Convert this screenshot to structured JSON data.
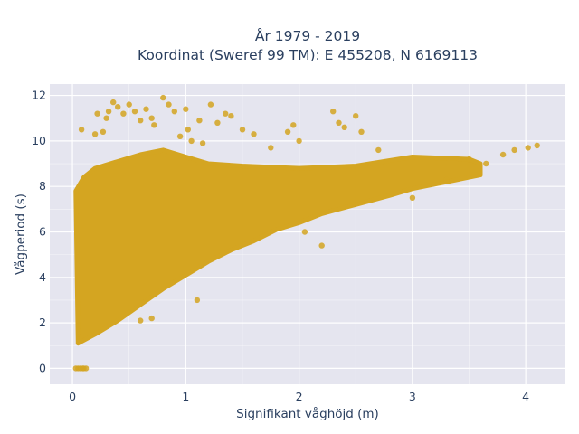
{
  "chart_data": {
    "type": "scatter",
    "title_line1": "År 1979 - 2019",
    "title_line2": "Koordinat (Sweref 99 TM): E 455208, N 6169113",
    "xlabel": "Signifikant våghöjd (m)",
    "ylabel": "Vågperiod (s)",
    "xlim": [
      -0.2,
      4.35
    ],
    "ylim": [
      -0.7,
      12.5
    ],
    "xticks": [
      0,
      1,
      2,
      3,
      4
    ],
    "yticks": [
      0,
      2,
      4,
      6,
      8,
      10,
      12
    ],
    "grid": true,
    "marker_color": "#d4a521",
    "plot_background": "#e5e5ef",
    "grid_color": "#ffffff",
    "point_cloud": {
      "description_free": true,
      "lower_envelope": [
        [
          0.05,
          1.1
        ],
        [
          0.2,
          1.5
        ],
        [
          0.4,
          2.1
        ],
        [
          0.6,
          2.8
        ],
        [
          0.8,
          3.5
        ],
        [
          1.0,
          4.1
        ],
        [
          1.2,
          4.7
        ],
        [
          1.4,
          5.2
        ],
        [
          1.6,
          5.6
        ],
        [
          1.8,
          6.1
        ],
        [
          2.0,
          6.4
        ],
        [
          2.2,
          6.8
        ],
        [
          2.5,
          7.2
        ],
        [
          2.8,
          7.6
        ],
        [
          3.0,
          7.9
        ],
        [
          3.3,
          8.2
        ],
        [
          3.6,
          8.5
        ]
      ],
      "upper_envelope": [
        [
          0.03,
          7.8
        ],
        [
          0.1,
          8.4
        ],
        [
          0.2,
          8.8
        ],
        [
          0.4,
          9.1
        ],
        [
          0.6,
          9.4
        ],
        [
          0.8,
          9.6
        ],
        [
          1.0,
          9.3
        ],
        [
          1.2,
          9.0
        ],
        [
          1.5,
          8.9
        ],
        [
          2.0,
          8.8
        ],
        [
          2.5,
          8.9
        ],
        [
          3.0,
          9.3
        ],
        [
          3.5,
          9.2
        ],
        [
          3.6,
          9.0
        ]
      ]
    },
    "points": [
      [
        0.03,
        0.0
      ],
      [
        0.05,
        0.0
      ],
      [
        0.07,
        0.0
      ],
      [
        0.09,
        0.0
      ],
      [
        0.1,
        0.0
      ],
      [
        0.12,
        0.0
      ],
      [
        0.08,
        10.5
      ],
      [
        0.2,
        10.3
      ],
      [
        0.22,
        11.2
      ],
      [
        0.27,
        10.4
      ],
      [
        0.3,
        11.0
      ],
      [
        0.32,
        11.3
      ],
      [
        0.36,
        11.7
      ],
      [
        0.4,
        11.5
      ],
      [
        0.45,
        11.2
      ],
      [
        0.5,
        11.6
      ],
      [
        0.55,
        11.3
      ],
      [
        0.6,
        10.9
      ],
      [
        0.65,
        11.4
      ],
      [
        0.7,
        11.0
      ],
      [
        0.72,
        10.7
      ],
      [
        0.8,
        11.9
      ],
      [
        0.85,
        11.6
      ],
      [
        0.9,
        11.3
      ],
      [
        0.95,
        10.2
      ],
      [
        1.0,
        11.4
      ],
      [
        1.02,
        10.5
      ],
      [
        1.05,
        10.0
      ],
      [
        1.12,
        10.9
      ],
      [
        1.15,
        9.9
      ],
      [
        1.22,
        11.6
      ],
      [
        1.28,
        10.8
      ],
      [
        1.35,
        11.2
      ],
      [
        1.4,
        11.1
      ],
      [
        1.5,
        10.5
      ],
      [
        1.6,
        10.3
      ],
      [
        1.75,
        9.7
      ],
      [
        1.9,
        10.4
      ],
      [
        1.95,
        10.7
      ],
      [
        2.0,
        10.0
      ],
      [
        2.3,
        11.3
      ],
      [
        2.35,
        10.8
      ],
      [
        2.4,
        10.6
      ],
      [
        2.5,
        11.1
      ],
      [
        2.55,
        10.4
      ],
      [
        2.7,
        9.6
      ],
      [
        3.5,
        9.2
      ],
      [
        3.8,
        9.4
      ],
      [
        3.9,
        9.6
      ],
      [
        4.02,
        9.7
      ],
      [
        4.1,
        9.8
      ],
      [
        3.65,
        9.0
      ],
      [
        3.3,
        8.3
      ],
      [
        3.0,
        7.5
      ],
      [
        2.2,
        5.4
      ],
      [
        2.05,
        6.0
      ],
      [
        1.1,
        3.0
      ],
      [
        0.6,
        2.1
      ],
      [
        0.7,
        2.2
      ]
    ]
  }
}
